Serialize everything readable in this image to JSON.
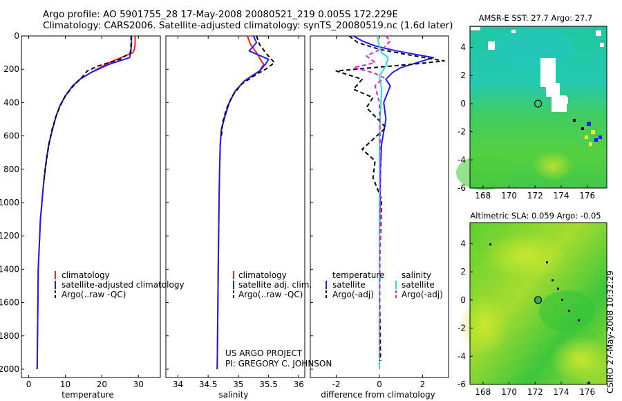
{
  "header": {
    "line1": "Argo profile: AO 5901755_28 17-May-2008 20080521_219 0.005S 172.229E",
    "line2": "Climatology: CARS2006. Satellite-adjusted climatology: synTS_20080519.nc (1.6d later)"
  },
  "credit": {
    "project": "US ARGO PROJECT",
    "pi": "PI: GREGORY C. JOHNSON",
    "side_stamp": "CSIRO 27-May-2008 10:32:29"
  },
  "colors": {
    "climatology": "#ff1a1a",
    "satellite": "#1a1aff",
    "argo": "#000000",
    "salinity_satellite": "#22e0e0",
    "salinity_argo": "#e020e0",
    "map_green": "#33cc33"
  },
  "chart_data": [
    {
      "id": "temperature",
      "type": "line",
      "title": "",
      "xlabel": "temperature",
      "ylabel": "",
      "xlim": [
        -2,
        36
      ],
      "ylim": [
        2050,
        0
      ],
      "xticks": [
        "0",
        "10",
        "20",
        "30"
      ],
      "yticks": [
        "0",
        "200",
        "400",
        "600",
        "800",
        "1000",
        "1200",
        "1400",
        "1600",
        "1800",
        "2000"
      ],
      "legend": [
        "climatology",
        "satellite-adjusted climatology",
        "Argo(..raw -QC)"
      ],
      "series": [
        {
          "name": "climatology",
          "color": "#ff1a1a",
          "style": "solid",
          "x": [
            29.1,
            29.1,
            28.9,
            28.5,
            22,
            17,
            14,
            12,
            10,
            8.5,
            7.5,
            6.5,
            5.5,
            5.0,
            4.5,
            4.0,
            3.6,
            3.2,
            3.0,
            2.8,
            2.6,
            2.5,
            2.4,
            2.3
          ],
          "y": [
            0,
            50,
            80,
            100,
            160,
            220,
            260,
            300,
            360,
            420,
            480,
            560,
            650,
            720,
            800,
            900,
            1000,
            1100,
            1200,
            1300,
            1400,
            1600,
            1800,
            2000
          ]
        },
        {
          "name": "satellite-adjusted climatology",
          "color": "#1a1aff",
          "style": "solid",
          "x": [
            28.1,
            28.1,
            27.9,
            27.6,
            22,
            17,
            14,
            12,
            10,
            8.5,
            7.5,
            6.5,
            5.5,
            5.0,
            4.5,
            4.0,
            3.6,
            3.2,
            3.0,
            2.8,
            2.6,
            2.5,
            2.4,
            2.3
          ],
          "y": [
            0,
            50,
            100,
            130,
            170,
            220,
            260,
            300,
            360,
            420,
            480,
            560,
            650,
            720,
            800,
            900,
            1000,
            1100,
            1200,
            1300,
            1400,
            1600,
            1800,
            2000
          ]
        },
        {
          "name": "Argo(..raw -QC)",
          "color": "#000000",
          "style": "dashed",
          "x": [
            28.0,
            28.0,
            27.8,
            25,
            19,
            16,
            14.5,
            12.2,
            10,
            8.6,
            7.5,
            6.4,
            5.6,
            5.0,
            4.5,
            4.1
          ],
          "y": [
            0,
            50,
            100,
            140,
            180,
            210,
            250,
            300,
            360,
            420,
            480,
            560,
            640,
            720,
            800,
            880
          ]
        }
      ]
    },
    {
      "id": "salinity",
      "type": "line",
      "title": "",
      "xlabel": "salinity",
      "ylabel": "",
      "xlim": [
        33.8,
        36.1
      ],
      "ylim": [
        2050,
        0
      ],
      "xticks": [
        "34",
        "34.5",
        "35",
        "35.5",
        "36"
      ],
      "legend": [
        "climatology",
        "satellite adj. clim.",
        "Argo(..raw -QC)"
      ],
      "series": [
        {
          "name": "climatology",
          "color": "#ff1a1a",
          "style": "solid",
          "x": [
            35.15,
            35.2,
            35.3,
            35.38,
            35.42,
            35.35,
            35.1,
            34.95,
            34.85,
            34.78,
            34.72,
            34.7,
            34.69,
            34.68,
            34.67,
            34.66,
            34.65
          ],
          "y": [
            0,
            50,
            100,
            150,
            170,
            210,
            270,
            330,
            400,
            480,
            560,
            650,
            800,
            1000,
            1300,
            1650,
            2000
          ]
        },
        {
          "name": "satellite adj. clim.",
          "color": "#1a1aff",
          "style": "solid",
          "x": [
            35.25,
            35.3,
            35.18,
            35.5,
            35.45,
            35.35,
            35.1,
            34.95,
            34.85,
            34.78,
            34.72,
            34.7,
            34.69,
            34.68,
            34.67,
            34.66,
            34.65
          ],
          "y": [
            0,
            40,
            90,
            140,
            170,
            210,
            270,
            330,
            400,
            480,
            560,
            650,
            800,
            1000,
            1300,
            1650,
            2000
          ]
        },
        {
          "name": "Argo(..raw -QC)",
          "color": "#000000",
          "style": "dashed",
          "x": [
            35.3,
            35.35,
            35.45,
            35.52,
            35.6,
            35.45,
            35.3,
            35.05,
            34.9,
            34.8,
            34.74,
            34.72
          ],
          "y": [
            0,
            50,
            100,
            130,
            160,
            200,
            230,
            290,
            360,
            440,
            520,
            600
          ]
        }
      ]
    },
    {
      "id": "difference",
      "type": "line",
      "title": "",
      "xlabel": "difference from climatology",
      "ylabel": "",
      "xlim": [
        -3.2,
        3.2
      ],
      "ylim": [
        2050,
        0
      ],
      "xticks": [
        "-2",
        "0",
        "2"
      ],
      "legend": [
        "temperature",
        "satellite",
        "Argo(-adj)",
        "salinity",
        "satellite",
        "Argo(-adj)"
      ],
      "series": [
        {
          "name": "temperature satellite",
          "color": "#1a1aff",
          "style": "solid",
          "x": [
            -1.2,
            -0.8,
            -0.2,
            0.8,
            2.5,
            1.0,
            0.6,
            0.3,
            0.5,
            0.2,
            0.3,
            0.1,
            0.05,
            0.0,
            0.0,
            0.0
          ],
          "y": [
            0,
            30,
            60,
            90,
            130,
            190,
            220,
            260,
            300,
            400,
            500,
            650,
            800,
            1200,
            1600,
            2000
          ]
        },
        {
          "name": "temperature Argo(-adj)",
          "color": "#000000",
          "style": "dashed",
          "x": [
            -1.4,
            -1.0,
            0.0,
            1.2,
            3.0,
            1.5,
            -2.0,
            -0.8,
            -1.2,
            -0.3,
            -0.6,
            0.3,
            -0.8,
            -0.2,
            -0.3,
            0.1,
            0.0,
            0.05
          ],
          "y": [
            0,
            40,
            80,
            110,
            150,
            170,
            210,
            260,
            320,
            370,
            430,
            550,
            680,
            750,
            850,
            980,
            1400,
            1950
          ]
        },
        {
          "name": "salinity satellite",
          "color": "#22e0e0",
          "style": "solid",
          "x": [
            -0.1,
            -0.05,
            0.0,
            0.1,
            0.4,
            0.3,
            0.0,
            0.1,
            0.0,
            0.0
          ],
          "y": [
            0,
            30,
            60,
            100,
            130,
            180,
            240,
            320,
            600,
            2000
          ]
        },
        {
          "name": "salinity Argo(-adj)",
          "color": "#e020e0",
          "style": "dashed",
          "x": [
            0.3,
            0.5,
            0.2,
            -0.6,
            -0.2,
            -1.2,
            -0.3,
            0.2,
            -0.2,
            0.0,
            0.05,
            0.0
          ],
          "y": [
            0,
            30,
            70,
            120,
            160,
            190,
            220,
            250,
            300,
            400,
            700,
            1950
          ]
        }
      ]
    },
    {
      "id": "sst-map",
      "type": "heatmap",
      "title": "AMSR-E SST: 27.7 Argo: 27.7",
      "xlim": [
        167,
        177.5
      ],
      "ylim": [
        -6,
        5.5
      ],
      "xticks": [
        "168",
        "170",
        "172",
        "174",
        "176"
      ],
      "yticks": [
        "4",
        "2",
        "0",
        "-2",
        "-4",
        "-6"
      ],
      "marker": {
        "lon": 172.229,
        "lat": -0.005
      }
    },
    {
      "id": "sla-map",
      "type": "heatmap",
      "title": "Altimetric SLA: 0.059 Argo: -0.05",
      "xlim": [
        167,
        177.5
      ],
      "ylim": [
        -6,
        5.5
      ],
      "xticks": [
        "168",
        "170",
        "172",
        "174",
        "176"
      ],
      "yticks": [
        "4",
        "2",
        "0",
        "-2",
        "-4",
        "-6"
      ],
      "marker": {
        "lon": 172.229,
        "lat": -0.005
      }
    }
  ]
}
